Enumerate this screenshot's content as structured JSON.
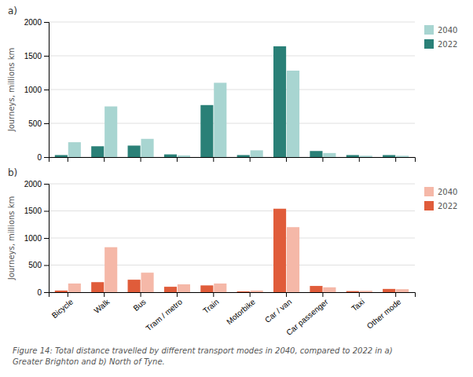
{
  "chart_data": [
    {
      "type": "bar",
      "title": "a)",
      "ylabel": "Journeys, millions km",
      "categories": [
        "Bicycle",
        "Walk",
        "Bus",
        "Tram / metro",
        "Train",
        "Motorbike",
        "Car / van",
        "Car passenger",
        "Taxi",
        "Other mode"
      ],
      "series": [
        {
          "name": "2022",
          "color": "#2A8077",
          "values": [
            30,
            160,
            170,
            40,
            770,
            30,
            1640,
            90,
            30,
            30
          ]
        },
        {
          "name": "2040",
          "color": "#A8D5D1",
          "values": [
            220,
            750,
            270,
            25,
            1100,
            100,
            1280,
            60,
            20,
            20
          ]
        }
      ],
      "ylim": [
        0,
        2000
      ],
      "yticks": [
        0,
        500,
        1000,
        1500,
        2000
      ],
      "grid": true,
      "legend": "right",
      "tick_labels": "y"
    },
    {
      "type": "bar",
      "title": "b)",
      "ylabel": "Journeys, millions km",
      "categories": [
        "Bicycle",
        "Walk",
        "Bus",
        "Tram / metro",
        "Train",
        "Motorbike",
        "Car / van",
        "Car passenger",
        "Taxi",
        "Other mode"
      ],
      "series": [
        {
          "name": "2022",
          "color": "#E05C3A",
          "values": [
            30,
            185,
            230,
            100,
            125,
            15,
            1540,
            115,
            20,
            60
          ]
        },
        {
          "name": "2040",
          "color": "#F5B8A8",
          "values": [
            160,
            830,
            360,
            145,
            160,
            30,
            1200,
            90,
            25,
            55
          ]
        }
      ],
      "ylim": [
        0,
        2000
      ],
      "yticks": [
        0,
        500,
        1000,
        1500,
        2000
      ],
      "grid": true,
      "legend": "right",
      "annotations": [
        "Figure 14: Total distance travelled by different transport modes in 2040, compared to 2022 in a)",
        "Greater Brighton and b) North of Tyne."
      ]
    }
  ]
}
